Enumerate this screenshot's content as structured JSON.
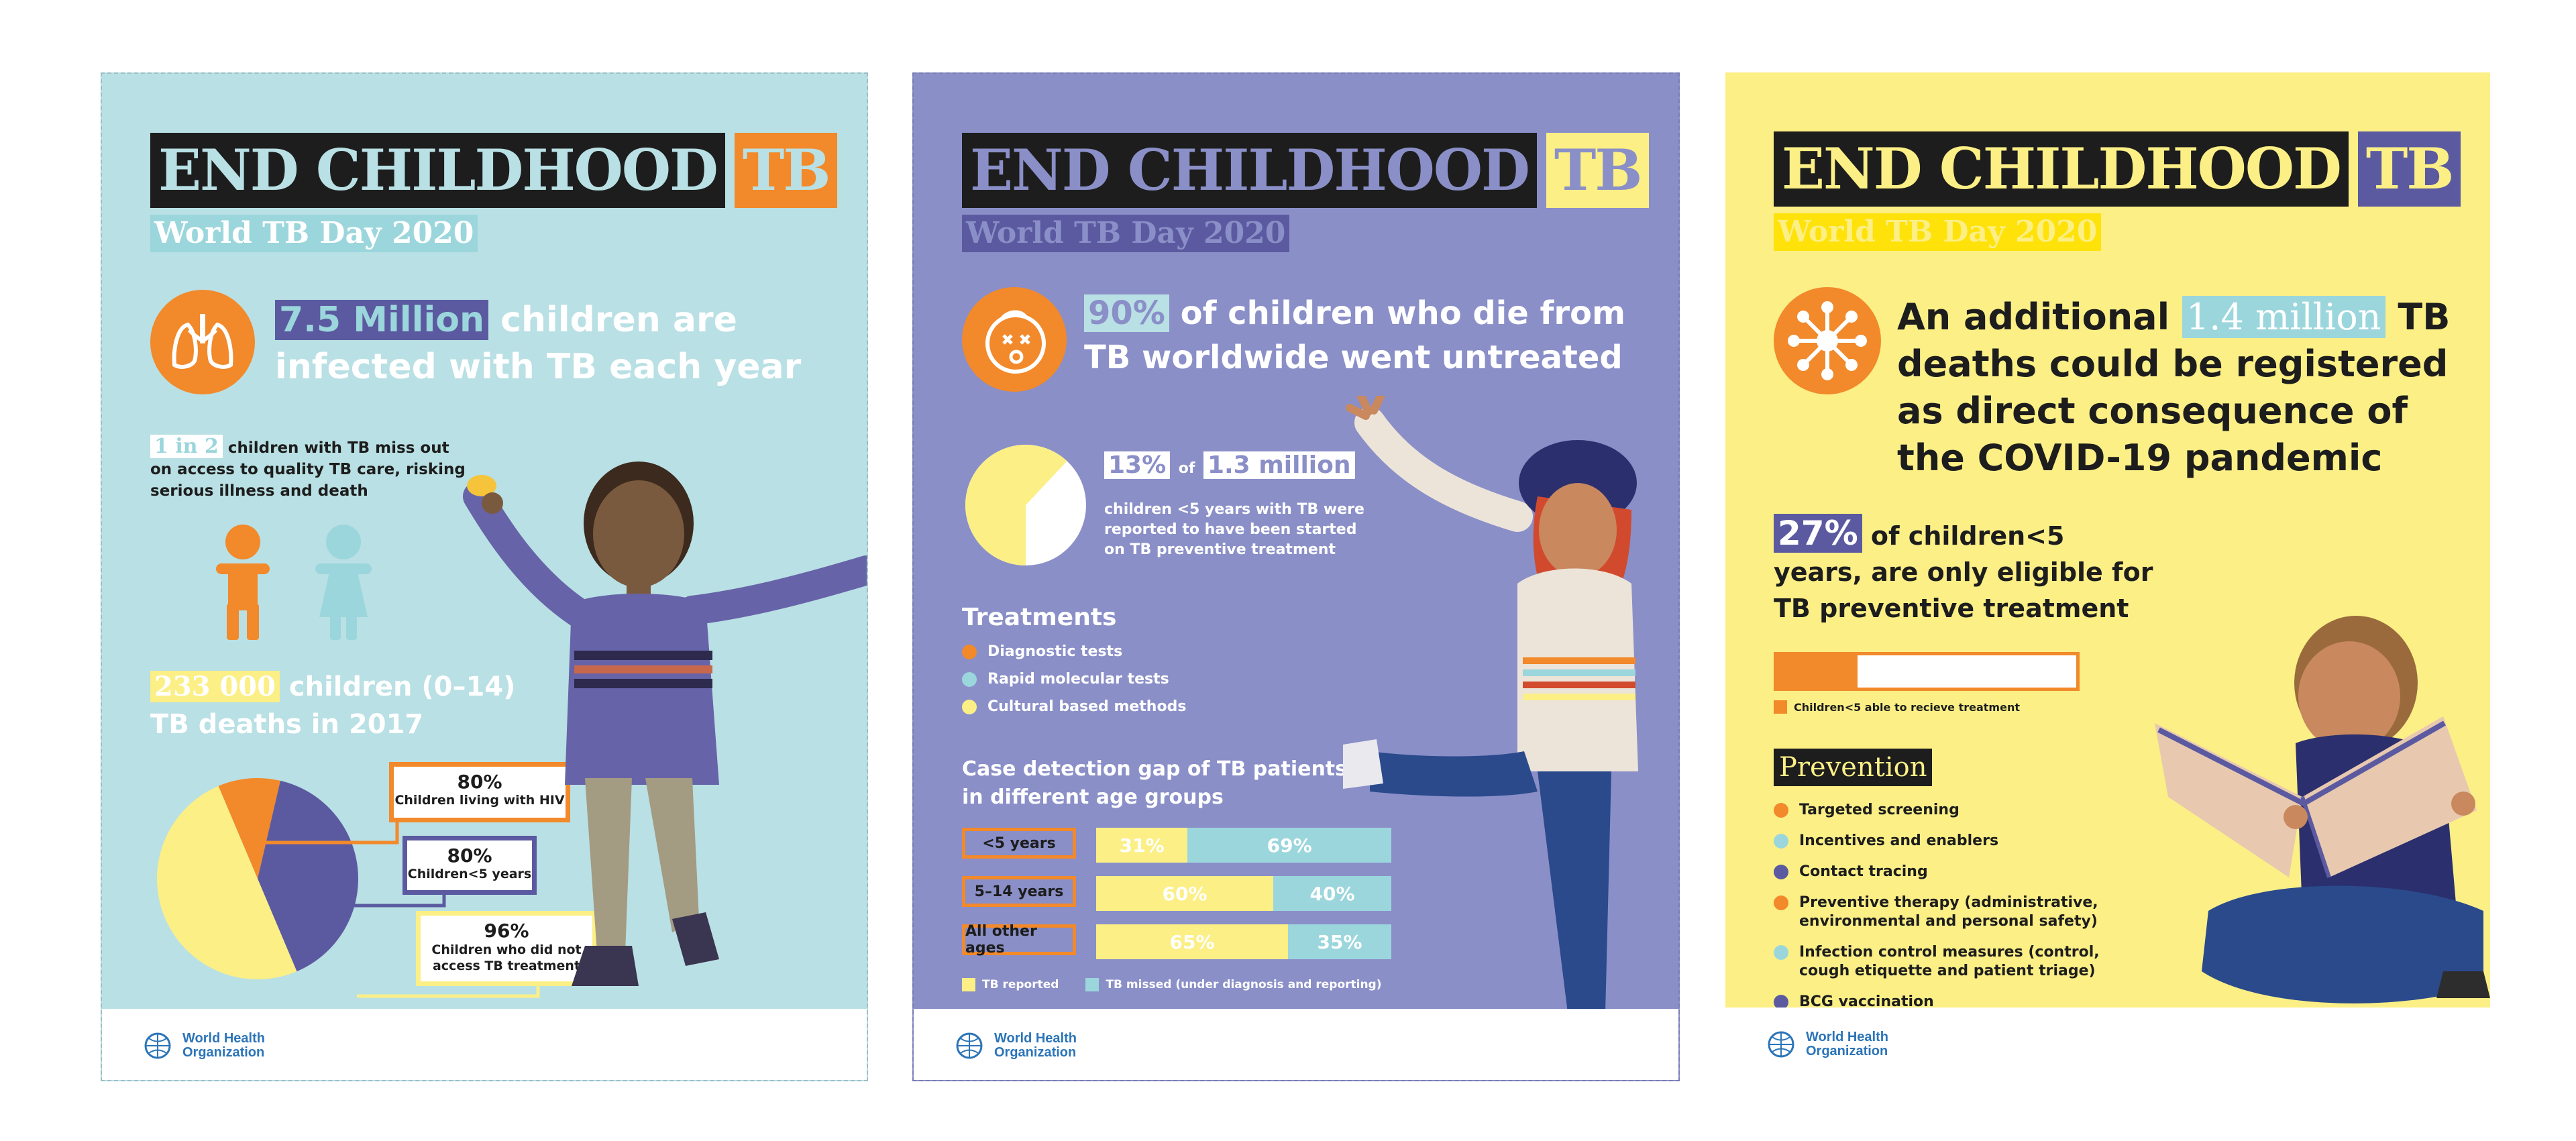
{
  "poster1": {
    "title": "END CHILDHOOD",
    "title_tb": "TB",
    "subtitle": "World TB Day 2020",
    "stat_highlight": "7.5 Million",
    "stat_line1_rest": "children are",
    "stat_line2": "infected with TB each year",
    "miss_highlight": "1 in 2",
    "miss_line1_rest": "children with TB miss out",
    "miss_line2": "on access to quality TB care, risking",
    "miss_line3": "serious illness and death",
    "deaths_highlight": "233 000",
    "deaths_line1_rest": "children (0–14)",
    "deaths_line2": "TB deaths in 2017",
    "callouts": [
      {
        "value": "80%",
        "label": "Children living with HIV"
      },
      {
        "value": "80%",
        "label": "Children<5 years"
      },
      {
        "value": "96%",
        "label": "Children who did not access TB treatment"
      }
    ],
    "pie_fractions": [
      0.1,
      0.4,
      0.5
    ],
    "who_line1": "World Health",
    "who_line2": "Organization"
  },
  "poster2": {
    "title": "END CHILDHOOD",
    "title_tb": "TB",
    "subtitle": "World TB Day 2020",
    "stat_highlight": "90%",
    "stat_line1_rest": "of children who die from",
    "stat_line2": "TB worldwide went untreated",
    "pct_highlight": "13%",
    "of_word": "of",
    "million_highlight": "1.3 million",
    "treat_line1": "children <5 years with TB were",
    "treat_line2": "reported to have been started",
    "treat_line3": "on TB preventive treatment",
    "pie_fraction_untreated": 0.62,
    "treatments_title": "Treatments",
    "treatments": [
      {
        "label": "Diagnostic tests",
        "color": "#f2892a"
      },
      {
        "label": "Rapid molecular tests",
        "color": "#9bd6dc"
      },
      {
        "label": "Cultural based methods",
        "color": "#fbef86"
      }
    ],
    "gap_title_line1": "Case detection gap of TB patients",
    "gap_title_line2": "in different age groups",
    "gap_rows": [
      {
        "label": "<5 years",
        "reported": "31%",
        "missed": "69%",
        "reported_fraction": 0.31
      },
      {
        "label": "5–14 years",
        "reported": "60%",
        "missed": "40%",
        "reported_fraction": 0.6
      },
      {
        "label": "All other ages",
        "reported": "65%",
        "missed": "35%",
        "reported_fraction": 0.65
      }
    ],
    "legend_reported": "TB reported",
    "legend_missed": "TB missed (under diagnosis and reporting)",
    "who_line1": "World Health",
    "who_line2": "Organization"
  },
  "poster3": {
    "title": "END CHILDHOOD",
    "title_tb": "TB",
    "subtitle": "World TB Day 2020",
    "stat_line1_pre": "An additional",
    "stat_highlight": "1.4 million",
    "stat_line1_post": "TB",
    "stat_line2": "deaths could be registered",
    "stat_line3": "as direct consequence of",
    "stat_line4": "the COVID-19 pandemic",
    "pct_highlight": "27%",
    "pct_line1_rest": "of children<5",
    "pct_line2": "years, are only eligible for",
    "pct_line3": "TB preventive treatment",
    "progress_fraction": 0.27,
    "progress_legend": "Children<5 able to recieve treatment",
    "prevention_title": "Prevention",
    "prevention": [
      {
        "label": "Targeted screening",
        "color": "#f2892a"
      },
      {
        "label": "Incentives and enablers",
        "color": "#9bd6dc"
      },
      {
        "label": "Contact tracing",
        "color": "#5b5aa0"
      },
      {
        "label": "Preventive therapy (administrative, environmental and personal safety)",
        "color": "#f2892a"
      },
      {
        "label": "Infection control measures (control, cough etiquette and patient triage)",
        "color": "#9bd6dc"
      },
      {
        "label": "BCG vaccination",
        "color": "#5b5aa0"
      }
    ],
    "who_line1": "World Health",
    "who_line2": "Organization"
  }
}
